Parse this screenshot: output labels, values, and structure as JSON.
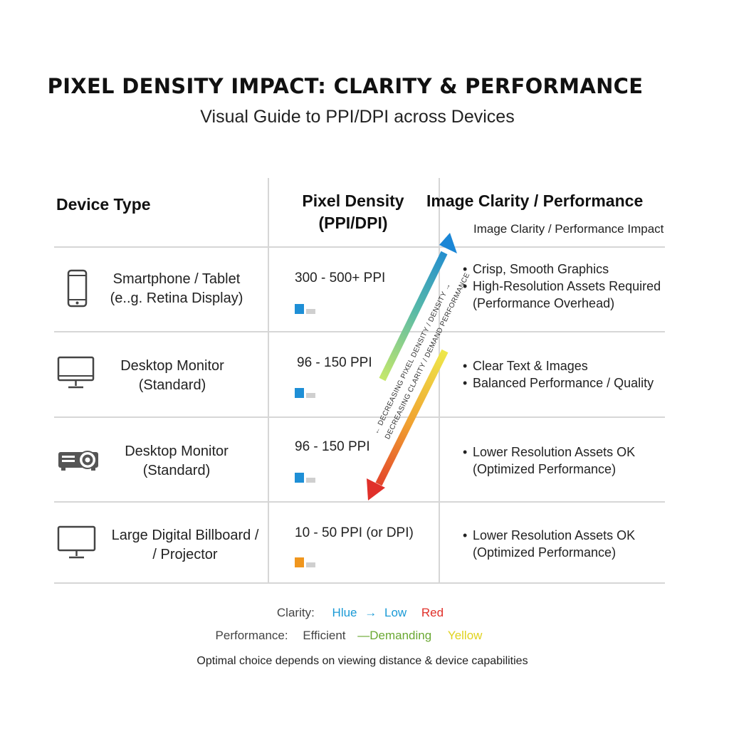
{
  "title": "PIXEL DENSITY IMPACT: CLARITY & PERFORMANCE",
  "subtitle": "Visual Guide to PPI/DPI across Devices",
  "columns": {
    "device": "Device Type",
    "density_line1": "Pixel Density",
    "density_line2": "(PPI/DPI)",
    "clarity": "Image Clarity / Performance",
    "clarity_sub": "Image Clarity / Performance Impact"
  },
  "rows": [
    {
      "icon": "smartphone-icon",
      "name_line1": "Smartphone / Tablet",
      "name_line2": "(e..g. Retina Display)",
      "density": "300 - 500+ PPI",
      "level": 0.55,
      "level_color": "#1e8fd6",
      "bullets": [
        {
          "text": "Crisp, Smooth Graphics",
          "bullet": true
        },
        {
          "text": "High-Resolution Assets Required",
          "bullet": true
        },
        {
          "text": "(Performance Overhead)",
          "bullet": false
        }
      ]
    },
    {
      "icon": "desktop-monitor-icon",
      "name_line1": "Desktop Monitor",
      "name_line2": "(Standard)",
      "density": "96 - 150 PPI",
      "level": 0.55,
      "level_color": "#1e8fd6",
      "bullets": [
        {
          "text": "Clear Text & Images",
          "bullet": true
        },
        {
          "text": "Balanced Performance / Quality",
          "bullet": true
        }
      ]
    },
    {
      "icon": "projector-icon",
      "name_line1": "Desktop Monitor",
      "name_line2": "(Standard)",
      "density": "96 - 150 PPI",
      "level": 0.55,
      "level_color": "#1e8fd6",
      "bullets": [
        {
          "text": "Lower Resolution Assets OK",
          "bullet": true
        },
        {
          "text": "(Optimized Performance)",
          "bullet": false
        }
      ]
    },
    {
      "icon": "billboard-monitor-icon",
      "name_line1": "Large Digital Billboard /",
      "name_line2": "/ Projector",
      "density": "10 - 50 PPI (or DPI)",
      "level": 0.55,
      "level_color": "#f0961e",
      "bullets": [
        {
          "text": "Lower Resolution Assets OK",
          "bullet": true
        },
        {
          "text": "(Optimized Performance)",
          "bullet": false
        }
      ]
    }
  ],
  "diagonal": {
    "label_line1": "← DECREASING PIXEL DENSITY / DENSITY →",
    "label_line2": "DECREASING CLARITY / DEMAND PERFORMANCE"
  },
  "legend": {
    "clarity_label": "Clarity:",
    "clarity_high": "Hlue",
    "clarity_arrow": "→",
    "clarity_low": "Low",
    "clarity_red": "Red",
    "performance_label": "Performance:",
    "perf_efficient": "Efficient",
    "perf_demanding": "—Demanding",
    "perf_yellow": "Yellow",
    "colors": {
      "blue": "#1a9ad6",
      "red": "#e0302a",
      "green": "#6aa832",
      "yellow": "#e0d21e"
    }
  },
  "footnote": "Optimal choice depends on viewing distance & device capabilities"
}
